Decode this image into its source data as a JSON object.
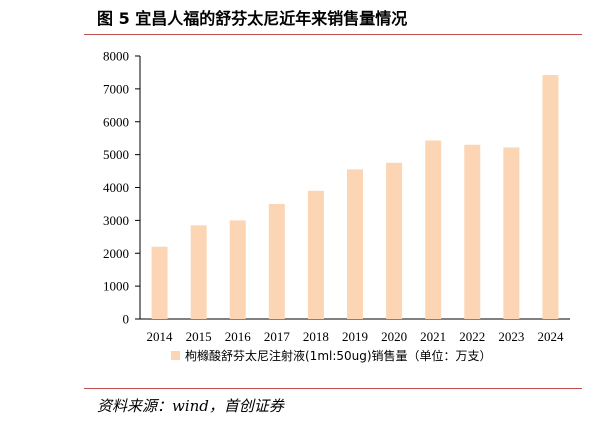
{
  "figure": {
    "title": "图 5 宜昌人福的舒芬太尼近年来销售量情况",
    "source": "资料来源：wind，首创证券"
  },
  "colors": {
    "bar": "#fcd5b4",
    "rule": "#c0504d",
    "axis": "#000000"
  },
  "chart_data": {
    "type": "bar",
    "categories": [
      "2014",
      "2015",
      "2016",
      "2017",
      "2018",
      "2019",
      "2020",
      "2021",
      "2022",
      "2023",
      "2024"
    ],
    "series": [
      {
        "name": "枸橼酸舒芬太尼注射液(1ml:50ug)销售量（单位：万支）",
        "values": [
          2200,
          2850,
          3000,
          3500,
          3900,
          4550,
          4750,
          5430,
          5300,
          5220,
          7420
        ]
      }
    ],
    "ylim": [
      0,
      8000
    ],
    "yticks": [
      "0",
      "1000",
      "2000",
      "3000",
      "4000",
      "5000",
      "6000",
      "7000",
      "8000"
    ],
    "grid": false,
    "legend_position": "bottom"
  }
}
